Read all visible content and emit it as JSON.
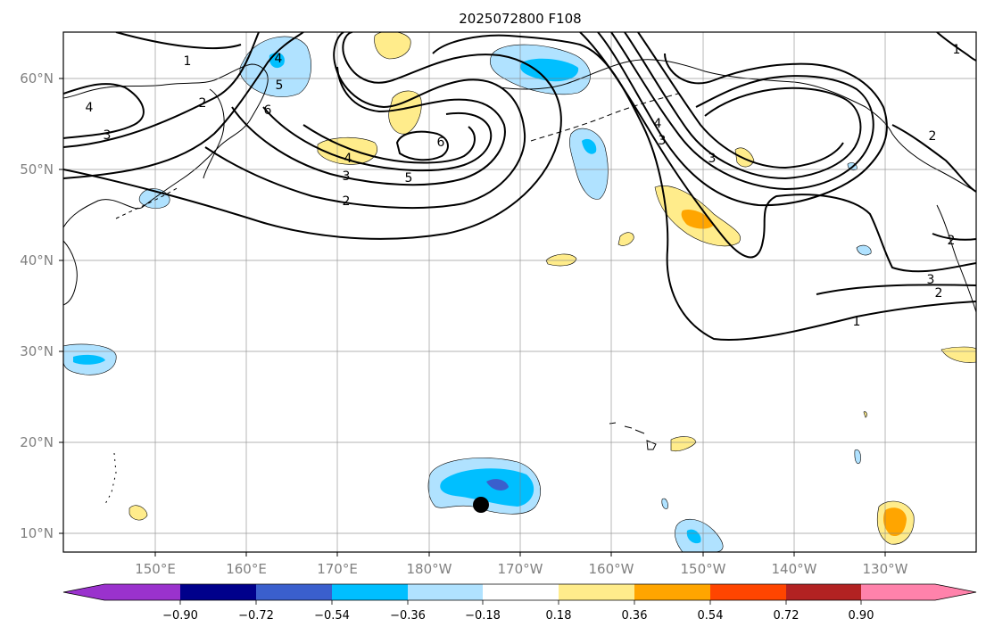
{
  "title": "2025072800 F108",
  "longitude_labels": [
    "150°E",
    "160°E",
    "170°E",
    "180°W",
    "170°W",
    "160°W",
    "150°W",
    "140°W",
    "130°W"
  ],
  "latitude_labels": [
    "60°N",
    "50°N",
    "40°N",
    "30°N",
    "20°N",
    "10°N"
  ],
  "colorbar": {
    "tick_labels": [
      "−0.90",
      "−0.72",
      "−0.54",
      "−0.36",
      "−0.18",
      "0.18",
      "0.36",
      "0.54",
      "0.72",
      "0.90"
    ],
    "colors": [
      "#9a32cd",
      "#00008b",
      "#3a5fcd",
      "#00bfff",
      "#b0e2ff",
      "#ffffff",
      "#ffec8b",
      "#ffa500",
      "#ff4500",
      "#b22222",
      "#ff82ab"
    ]
  },
  "contour_labels": [
    "1",
    "2",
    "3",
    "4",
    "5",
    "6",
    "1",
    "2",
    "3",
    "4",
    "2",
    "3",
    "4",
    "5",
    "6",
    "3",
    "2",
    "1",
    "2",
    "3",
    "4"
  ],
  "marker": "black-dot"
}
